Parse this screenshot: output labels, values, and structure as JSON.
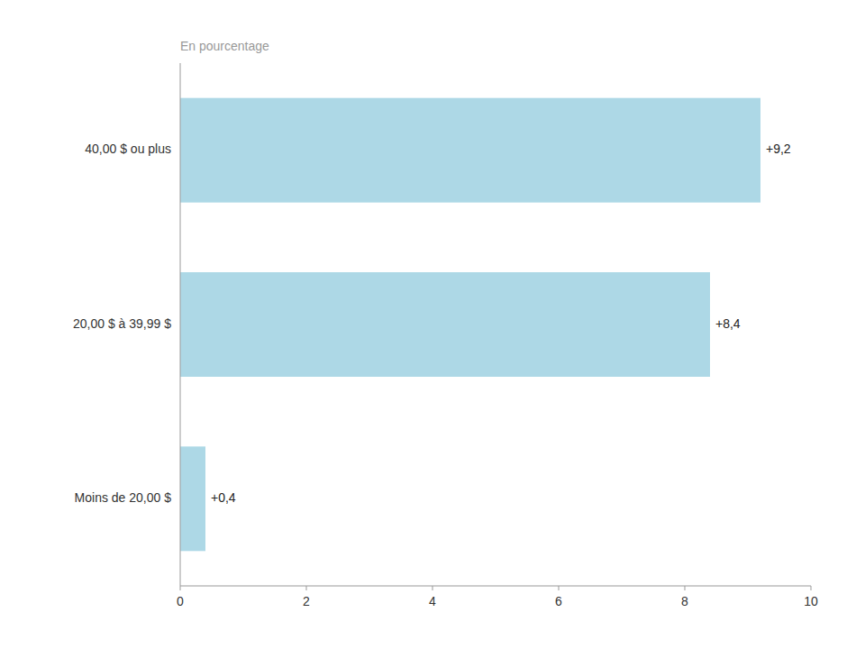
{
  "chart_data": {
    "type": "bar",
    "orientation": "horizontal",
    "xlabel": "En pourcentage",
    "categories": [
      "Moins de 20,00 $",
      "20,00 $ à 39,99 $",
      "40,00 $ ou plus"
    ],
    "values": [
      0.4,
      8.4,
      9.2
    ],
    "value_labels": [
      "+0,4",
      "+8,4",
      "+9,2"
    ],
    "data_labels": true,
    "color": "#ADD8E6",
    "xlim": [
      0,
      10
    ],
    "xticks": [
      0,
      2,
      4,
      6,
      8,
      10
    ],
    "grid": false
  }
}
